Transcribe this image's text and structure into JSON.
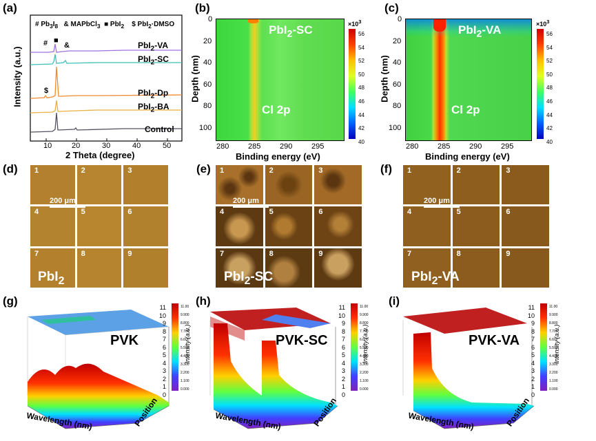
{
  "panel_a": {
    "label": "(a)",
    "legend": {
      "pb": "# Pb",
      "pb_sub": "3",
      "pb_sub2": "I",
      "pb_sub3": "8",
      "mapbcl": "& MAPbCl",
      "mapbcl_sub": "3",
      "pbi2": "■ PbI",
      "pbi2_sub": "2",
      "dmso": "$ PbI",
      "dmso_sub": "2",
      "dmso_tail": "·DMSO"
    },
    "markers": {
      "hash": "#",
      "square": "■",
      "amp": "&",
      "dollar": "$"
    },
    "xlabel": "2 Theta (degree)",
    "ylabel": "Intensity (a.u.)",
    "xticks": [
      "10",
      "20",
      "30",
      "40",
      "50"
    ],
    "curves": [
      {
        "name": "PbI",
        "sub": "2",
        "tail": "-VA",
        "color": "#a070e0"
      },
      {
        "name": "PbI",
        "sub": "2",
        "tail": "-SC",
        "color": "#3cbfb8"
      },
      {
        "name": "PbI",
        "sub": "2",
        "tail": "-Dp",
        "color": "#f08a30"
      },
      {
        "name": "PbI",
        "sub": "2",
        "tail": "-BA",
        "color": "#e8b040"
      },
      {
        "name": "Control",
        "sub": "",
        "tail": "",
        "color": "#505060"
      }
    ]
  },
  "panel_b": {
    "label": "(b)",
    "title_main": "PbI",
    "title_sub": "2",
    "title_tail": "-SC",
    "peak_label": "Cl 2p",
    "xlabel": "Binding energy (eV)",
    "ylabel": "Depth (nm)",
    "xticks": [
      "280",
      "285",
      "290",
      "295"
    ],
    "yticks": [
      "0",
      "20",
      "40",
      "60",
      "80",
      "100"
    ],
    "cbar_title": "×10",
    "cbar_exp": "3",
    "cbar_ticks": [
      "56",
      "54",
      "52",
      "50",
      "48",
      "46",
      "44",
      "42",
      "40"
    ]
  },
  "panel_c": {
    "label": "(c)",
    "title_main": "PbI",
    "title_sub": "2",
    "title_tail": "-VA",
    "peak_label": "Cl 2p",
    "xlabel": "Binding energy (eV)",
    "ylabel": "Depth (nm)",
    "xticks": [
      "280",
      "285",
      "290",
      "295"
    ],
    "yticks": [
      "0",
      "20",
      "40",
      "60",
      "80",
      "100"
    ],
    "cbar_title": "×10",
    "cbar_exp": "3",
    "cbar_ticks": [
      "56",
      "54",
      "52",
      "50",
      "48",
      "46",
      "44",
      "42",
      "40"
    ]
  },
  "micrographs": [
    {
      "label": "(d)",
      "title_main": "PbI",
      "title_sub": "2",
      "title_tail": "",
      "scale": "200 μm",
      "cells": [
        "1",
        "2",
        "3",
        "4",
        "5",
        "6",
        "7",
        "8",
        "9"
      ]
    },
    {
      "label": "(e)",
      "title_main": "PbI",
      "title_sub": "2",
      "title_tail": "-SC",
      "scale": "200 μm",
      "cells": [
        "1",
        "2",
        "3",
        "4",
        "5",
        "6",
        "7",
        "8",
        "9"
      ]
    },
    {
      "label": "(f)",
      "title_main": "PbI",
      "title_sub": "2",
      "title_tail": "-VA",
      "scale": "200 μm",
      "cells": [
        "1",
        "2",
        "3",
        "4",
        "5",
        "6",
        "7",
        "8",
        "9"
      ]
    }
  ],
  "surfaces": [
    {
      "label": "(g)",
      "title": "PVK"
    },
    {
      "label": "(h)",
      "title": "PVK-SC"
    },
    {
      "label": "(i)",
      "title": "PVK-VA"
    }
  ],
  "surface_axes": {
    "xlabel": "Wavelength (nm)",
    "poslabel": "Position",
    "zlabel": "Intensity (a.u.)",
    "zticks": [
      "11",
      "10",
      "9",
      "8",
      "7",
      "6",
      "5",
      "4",
      "3",
      "2",
      "1",
      "0"
    ],
    "cbar_ticks": [
      "11.00",
      "9.900",
      "8.800",
      "7.700",
      "6.600",
      "5.500",
      "4.400",
      "3.300",
      "2.200",
      "1.100",
      "0.000"
    ]
  },
  "colors": {
    "jet": [
      "#7a0000",
      "#ff0000",
      "#ff8000",
      "#ffff00",
      "#80ff80",
      "#00ffff",
      "#0080ff",
      "#0000ff",
      "#000080"
    ],
    "film_plain": "#b07a2a",
    "film_dark": "#6b4010"
  }
}
